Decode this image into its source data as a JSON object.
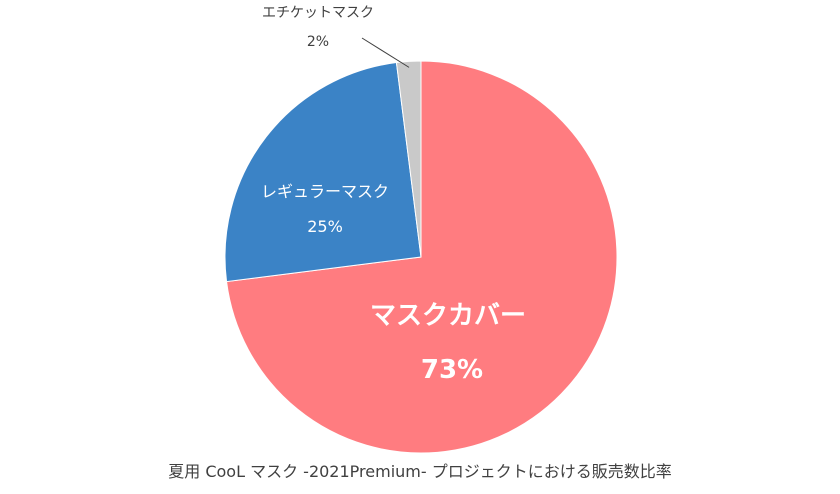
{
  "chart_data": {
    "type": "pie",
    "caption": "夏用 CooL マスク -2021Premium- プロジェクトにおける販売数比率",
    "slices": [
      {
        "label": "マスクカバー",
        "value": 73,
        "value_label": "73%",
        "color": "#FF7C80"
      },
      {
        "label": "レギュラーマスク",
        "value": 25,
        "value_label": "25%",
        "color": "#3B83C6"
      },
      {
        "label": "エチケットマスク",
        "value": 2,
        "value_label": "2%",
        "color": "#C9C9C9"
      }
    ],
    "start": "top",
    "direction": "clockwise",
    "legend": "none",
    "data_labels": "category-and-percent"
  }
}
